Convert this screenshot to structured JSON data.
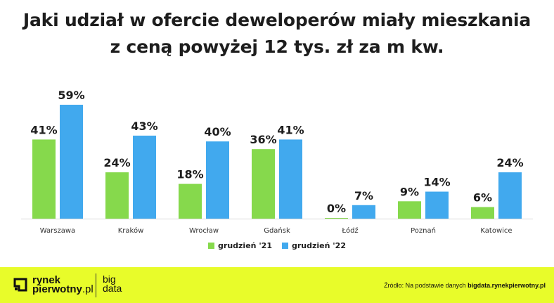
{
  "title_line1": "Jaki udział w ofercie deweloperów miały mieszkania",
  "title_line2": "z ceną powyżej 12 tys. zł za m kw.",
  "chart_data": {
    "type": "bar",
    "categories": [
      "Warszawa",
      "Kraków",
      "Wrocław",
      "Gdańsk",
      "Łódź",
      "Poznań",
      "Katowice"
    ],
    "series": [
      {
        "name": "grudzień '21",
        "values": [
          41,
          24,
          18,
          36,
          0,
          9,
          6
        ],
        "color": "#86d94c"
      },
      {
        "name": "grudzień '22",
        "values": [
          59,
          43,
          40,
          41,
          7,
          14,
          24
        ],
        "color": "#41a9ee"
      }
    ],
    "value_suffix": "%",
    "ylim": [
      0,
      59
    ],
    "grid": false,
    "legend_position": "bottom-center"
  },
  "footer": {
    "logo_line1": "rynek",
    "logo_line2": "pierwotny",
    "logo_tld": ".pl",
    "bigdata_line1": "big",
    "bigdata_line2": "data",
    "source_prefix": "Źródło: Na podstawie danych ",
    "source_link": "bigdata.rynekpierwotny.pl"
  },
  "colors": {
    "footer_bg": "#e8fc2a",
    "green": "#86d94c",
    "blue": "#41a9ee"
  }
}
